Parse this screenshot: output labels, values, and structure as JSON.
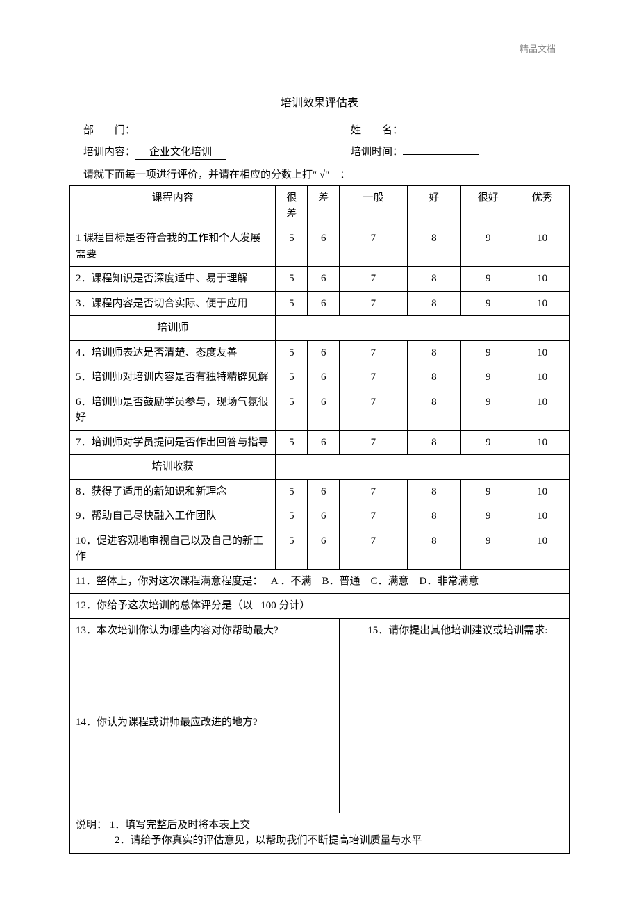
{
  "watermark": "精品文档",
  "title": "培训效果评估表",
  "meta": {
    "dept_label": "部　　门：",
    "dept_value": "",
    "name_label": "姓　　名：",
    "name_value": "",
    "content_label": "培训内容：",
    "content_value": "企业文化培训",
    "time_label": "培训时间：",
    "time_value": ""
  },
  "instruction": "请就下面每一项进行评价，并请在相应的分数上打\" √\"　：",
  "headers": {
    "col1": "课程内容",
    "c1": "很差",
    "c2": "差",
    "c3": "一般",
    "c4": "好",
    "c5": "很好",
    "c6": "优秀"
  },
  "scores": {
    "s1": "5",
    "s2": "6",
    "s3": "7",
    "s4": "8",
    "s5": "9",
    "s6": "10"
  },
  "section2": "培训师",
  "section3": "培训收获",
  "items": {
    "q1": "1 课程目标是否符合我的工作和个人发展需要",
    "q2": "2．课程知识是否深度适中、易于理解",
    "q3": "3．课程内容是否切合实际、便于应用",
    "q4": "4．培训师表达是否清楚、态度友善",
    "q5": "5．培训师对培训内容是否有独特精辟见解",
    "q6": "6．培训师是否鼓励学员参与，现场气氛很好",
    "q7": "7．培训师对学员提问是否作出回答与指导",
    "q8": "8．获得了适用的新知识和新理念",
    "q9": "9．帮助自己尽快融入工作团队",
    "q10": "10．促进客观地审视自己以及自己的新工作"
  },
  "q11": {
    "text": "11．整体上，你对这次课程满意程度是：",
    "optA": "A ．不满",
    "optB": "B．普通",
    "optC": "C．满意",
    "optD": "D．非常满意"
  },
  "q12": {
    "text1": "12．你给予这次培训的总体评分是（以",
    "text2": "100 分计）"
  },
  "q13": "13．本次培训你认为哪些内容对你帮助最大?",
  "q14": "14．你认为课程或讲师最应改进的地方?",
  "q15": "15．请你提出其他培训建议或培训需求:",
  "notes": {
    "prefix": "说明：",
    "line1": "1．填写完整后及时将本表上交",
    "line2": "2．请给予你真实的评估意见，以帮助我们不断提高培训质量与水平"
  }
}
